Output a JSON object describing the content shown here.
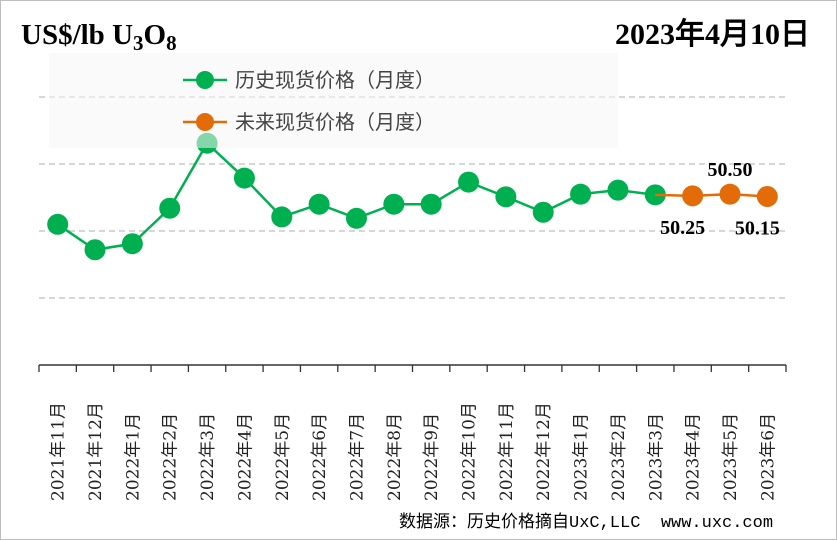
{
  "header": {
    "unit_label": "US$/lb U",
    "unit_sub1": "3",
    "unit_o": "O",
    "unit_sub2": "8",
    "date": "2023年4月10日"
  },
  "footer": {
    "source": "数据源：历史价格摘自UxC,LLC  www.uxc.com"
  },
  "chart_data": {
    "type": "line",
    "categories": [
      "2021年11月",
      "2021年12月",
      "2022年1月",
      "2022年2月",
      "2022年3月",
      "2022年4月",
      "2022年5月",
      "2022年6月",
      "2022年7月",
      "2022年8月",
      "2022年9月",
      "2022年10月",
      "2022年11月",
      "2022年12月",
      "2023年1月",
      "2023年2月",
      "2023年3月",
      "2023年4月",
      "2023年5月",
      "2023年6月"
    ],
    "ylabel": "US$/lb U3O8",
    "ylim": [
      25,
      75
    ],
    "gridlines": [
      35,
      45,
      55,
      65
    ],
    "grid": true,
    "legend_placement": "top",
    "series": [
      {
        "name": "历史现货价格（月度）",
        "color": "#00b050",
        "values": [
          46.0,
          42.2,
          43.1,
          48.4,
          58.1,
          52.9,
          47.1,
          49.0,
          46.9,
          49.0,
          49.0,
          52.3,
          50.1,
          47.8,
          50.5,
          51.1,
          50.4,
          null,
          null,
          null
        ]
      },
      {
        "name": "未来现货价格（月度）",
        "color": "#e36c09",
        "values": [
          null,
          null,
          null,
          null,
          null,
          null,
          null,
          null,
          null,
          null,
          null,
          null,
          null,
          null,
          null,
          null,
          null,
          50.25,
          50.5,
          50.15
        ],
        "data_labels": [
          "",
          "",
          "",
          "",
          "",
          "",
          "",
          "",
          "",
          "",
          "",
          "",
          "",
          "",
          "",
          "",
          "",
          "50.25",
          "50.50",
          "50.15"
        ]
      }
    ]
  }
}
